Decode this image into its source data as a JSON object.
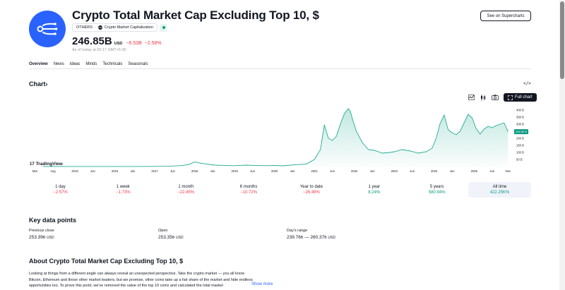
{
  "header": {
    "title": "Crypto Total Market Cap Excluding Top 10, $",
    "symbol": "OTHERS",
    "source": "Crypto Market Capitalization",
    "source_badge": "CMC",
    "see_on_supercharts": "See on Supercharts",
    "price": "246.85",
    "price_unit": "B",
    "currency": "USD",
    "change": "−6.53",
    "change_unit": "B",
    "change_pct": "−2.58%",
    "as_of": "As of today at 00:17 GMT+5:30"
  },
  "tabs": [
    "Overview",
    "News",
    "Ideas",
    "Minds",
    "Technicals",
    "Seasonals"
  ],
  "chart_section": {
    "heading": "Chart",
    "heading_arrow": "›",
    "embed": "</>",
    "full_chart": "Full chart",
    "tv_logo_mark": "17",
    "tv_logo": "TradingView"
  },
  "chart_data": {
    "type": "area",
    "title": "",
    "x": [
      2014.2,
      2014.6,
      2015.0,
      2015.5,
      2016.0,
      2016.5,
      2017.0,
      2017.3,
      2017.5,
      2017.7,
      2017.85,
      2018.0,
      2018.15,
      2018.3,
      2018.5,
      2018.8,
      2019.0,
      2019.3,
      2019.5,
      2019.8,
      2020.0,
      2020.2,
      2020.5,
      2020.8,
      2021.0,
      2021.15,
      2021.25,
      2021.35,
      2021.45,
      2021.55,
      2021.65,
      2021.75,
      2021.85,
      2021.9,
      2021.95,
      2022.05,
      2022.2,
      2022.35,
      2022.5,
      2022.7,
      2022.9,
      2023.0,
      2023.2,
      2023.4,
      2023.6,
      2023.8,
      2023.95,
      2024.05,
      2024.15,
      2024.25,
      2024.35,
      2024.45,
      2024.55,
      2024.65,
      2024.75,
      2024.85,
      2024.95,
      2025.05,
      2025.15,
      2025.25,
      2025.35,
      2025.45,
      2025.55,
      2025.65,
      2025.75,
      2025.85
    ],
    "values": [
      0.3,
      0.3,
      0.3,
      0.4,
      0.5,
      0.6,
      1,
      2,
      4,
      8,
      14,
      32,
      24,
      18,
      10,
      7,
      6,
      10,
      8,
      6,
      8,
      5,
      12,
      18,
      50,
      120,
      295,
      200,
      185,
      215,
      300,
      375,
      410,
      390,
      340,
      250,
      170,
      120,
      115,
      95,
      100,
      105,
      120,
      110,
      95,
      105,
      130,
      200,
      305,
      365,
      260,
      240,
      225,
      250,
      310,
      370,
      345,
      270,
      230,
      265,
      285,
      275,
      290,
      300,
      310,
      247
    ],
    "last_label": "246.85 B",
    "xlabel": "",
    "ylabel": "",
    "ylim": [
      0,
      420
    ],
    "y_ticks": [
      "400 B",
      "350 B",
      "300 B",
      "250 B",
      "200 B",
      "150 B",
      "100 B",
      "50 B"
    ],
    "y_tick_values": [
      400,
      350,
      300,
      250,
      200,
      150,
      100,
      50
    ],
    "x_range": [
      2013.85,
      2025.95
    ],
    "x_ticks": [
      {
        "label": "Mar",
        "x": 2014.0
      },
      {
        "label": "Aug",
        "x": 2014.45
      },
      {
        "label": "2015",
        "x": 2015.0
      },
      {
        "label": "Jun",
        "x": 2015.45
      },
      {
        "label": "2016",
        "x": 2016.0
      },
      {
        "label": "Jun",
        "x": 2016.45
      },
      {
        "label": "2017",
        "x": 2017.0
      },
      {
        "label": "Jun",
        "x": 2017.45
      },
      {
        "label": "2018",
        "x": 2018.0
      },
      {
        "label": "Jun",
        "x": 2018.45
      },
      {
        "label": "2019",
        "x": 2019.0
      },
      {
        "label": "Jun",
        "x": 2019.45
      },
      {
        "label": "2020",
        "x": 2020.0
      },
      {
        "label": "Jun",
        "x": 2020.45
      },
      {
        "label": "2021",
        "x": 2021.0
      },
      {
        "label": "Jun",
        "x": 2021.45
      },
      {
        "label": "2022",
        "x": 2022.0
      },
      {
        "label": "Jun",
        "x": 2022.45
      },
      {
        "label": "2023",
        "x": 2023.0
      },
      {
        "label": "Jun",
        "x": 2023.45
      },
      {
        "label": "2024",
        "x": 2024.0
      },
      {
        "label": "Jun",
        "x": 2024.45
      },
      {
        "label": "2025",
        "x": 2025.0
      },
      {
        "label": "Jun",
        "x": 2025.45
      },
      {
        "label": "Nov",
        "x": 2025.85
      }
    ],
    "line_color": "#22ab94",
    "label_color": "#089981"
  },
  "periods": [
    {
      "label": "1 day",
      "value": "−2.57%",
      "trend": "neg"
    },
    {
      "label": "1 week",
      "value": "−1.73%",
      "trend": "neg"
    },
    {
      "label": "1 month",
      "value": "−22.45%",
      "trend": "neg"
    },
    {
      "label": "6 months",
      "value": "−10.72%",
      "trend": "neg"
    },
    {
      "label": "Year to date",
      "value": "−26.49%",
      "trend": "neg"
    },
    {
      "label": "1 year",
      "value": "8.24%",
      "trend": "pos"
    },
    {
      "label": "5 years",
      "value": "580.94%",
      "trend": "pos"
    },
    {
      "label": "All time",
      "value": "422.25K%",
      "trend": "pos"
    }
  ],
  "key_data": {
    "title": "Key data points",
    "prev_close_label": "Previous close",
    "prev_close_value": "253.39",
    "prev_close_unit": "B",
    "prev_close_currency": "USD",
    "open_label": "Open",
    "open_value": "253.35",
    "open_unit": "B",
    "open_currency": "USD",
    "range_label": "Day's range",
    "range_low": "239.76",
    "range_low_unit": "B",
    "range_sep": " — ",
    "range_high": "260.37",
    "range_high_unit": "B",
    "range_currency": "USD"
  },
  "about": {
    "title": "About Crypto Total Market Cap Excluding Top 10, $",
    "line1": "Looking at things from a different angle can always reveal an unexpected perspective. Take the crypto market — you all know",
    "line2": "Bitcoin, Ethereum and those other market leaders, but we promise, other coins take up a fair share of the market and hide endless",
    "line3": "opportunities too. To prove this point, we've removed the value of the top 10 coins and calculated the total market",
    "show_more": "Show more"
  }
}
